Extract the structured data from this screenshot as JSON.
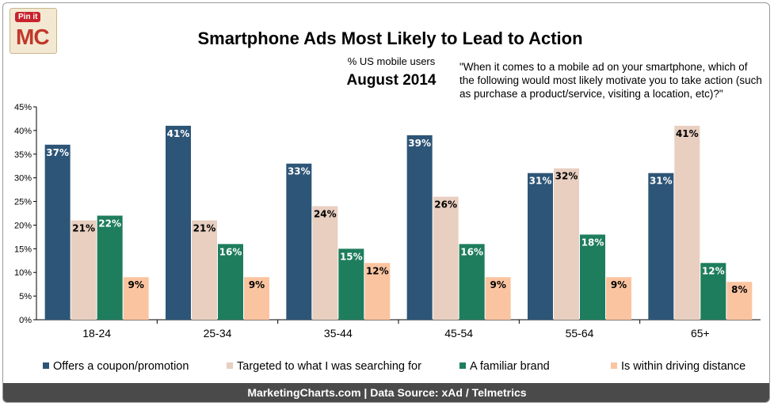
{
  "branding": {
    "pin_label": "Pin it",
    "logo_text": "MC"
  },
  "header": {
    "title": "Smartphone Ads Most Likely to Lead to Action",
    "subtitle": "% US mobile users",
    "date": "August 2014",
    "question": "\"When it comes to a mobile ad on your smartphone, which of the following would most likely motivate you to take action (such as purchase a product/service, visiting a location, etc)?\""
  },
  "chart_data": {
    "type": "bar",
    "title": "Smartphone Ads Most Likely to Lead to Action",
    "subtitle": "% US mobile users",
    "categories": [
      "18-24",
      "25-34",
      "35-44",
      "45-54",
      "55-64",
      "65+"
    ],
    "series": [
      {
        "name": "Offers a coupon/promotion",
        "color": "#2d5577",
        "values": [
          37,
          41,
          33,
          39,
          31,
          31
        ]
      },
      {
        "name": "Targeted to what I was searching for",
        "color": "#e8cfc0",
        "values": [
          21,
          21,
          24,
          26,
          32,
          41
        ]
      },
      {
        "name": "A familiar brand",
        "color": "#1e7d5d",
        "values": [
          22,
          16,
          15,
          16,
          18,
          12
        ]
      },
      {
        "name": "Is within driving distance",
        "color": "#fbc4a0",
        "values": [
          9,
          9,
          12,
          9,
          9,
          8
        ]
      }
    ],
    "ylim": [
      0,
      45
    ],
    "yticks": [
      "0%",
      "5%",
      "10%",
      "15%",
      "20%",
      "25%",
      "30%",
      "35%",
      "40%",
      "45%"
    ],
    "value_suffix": "%",
    "legend_position": "bottom",
    "grid": false
  },
  "footer": {
    "text": "MarketingCharts.com | Data Source: xAd / Telmetrics"
  }
}
